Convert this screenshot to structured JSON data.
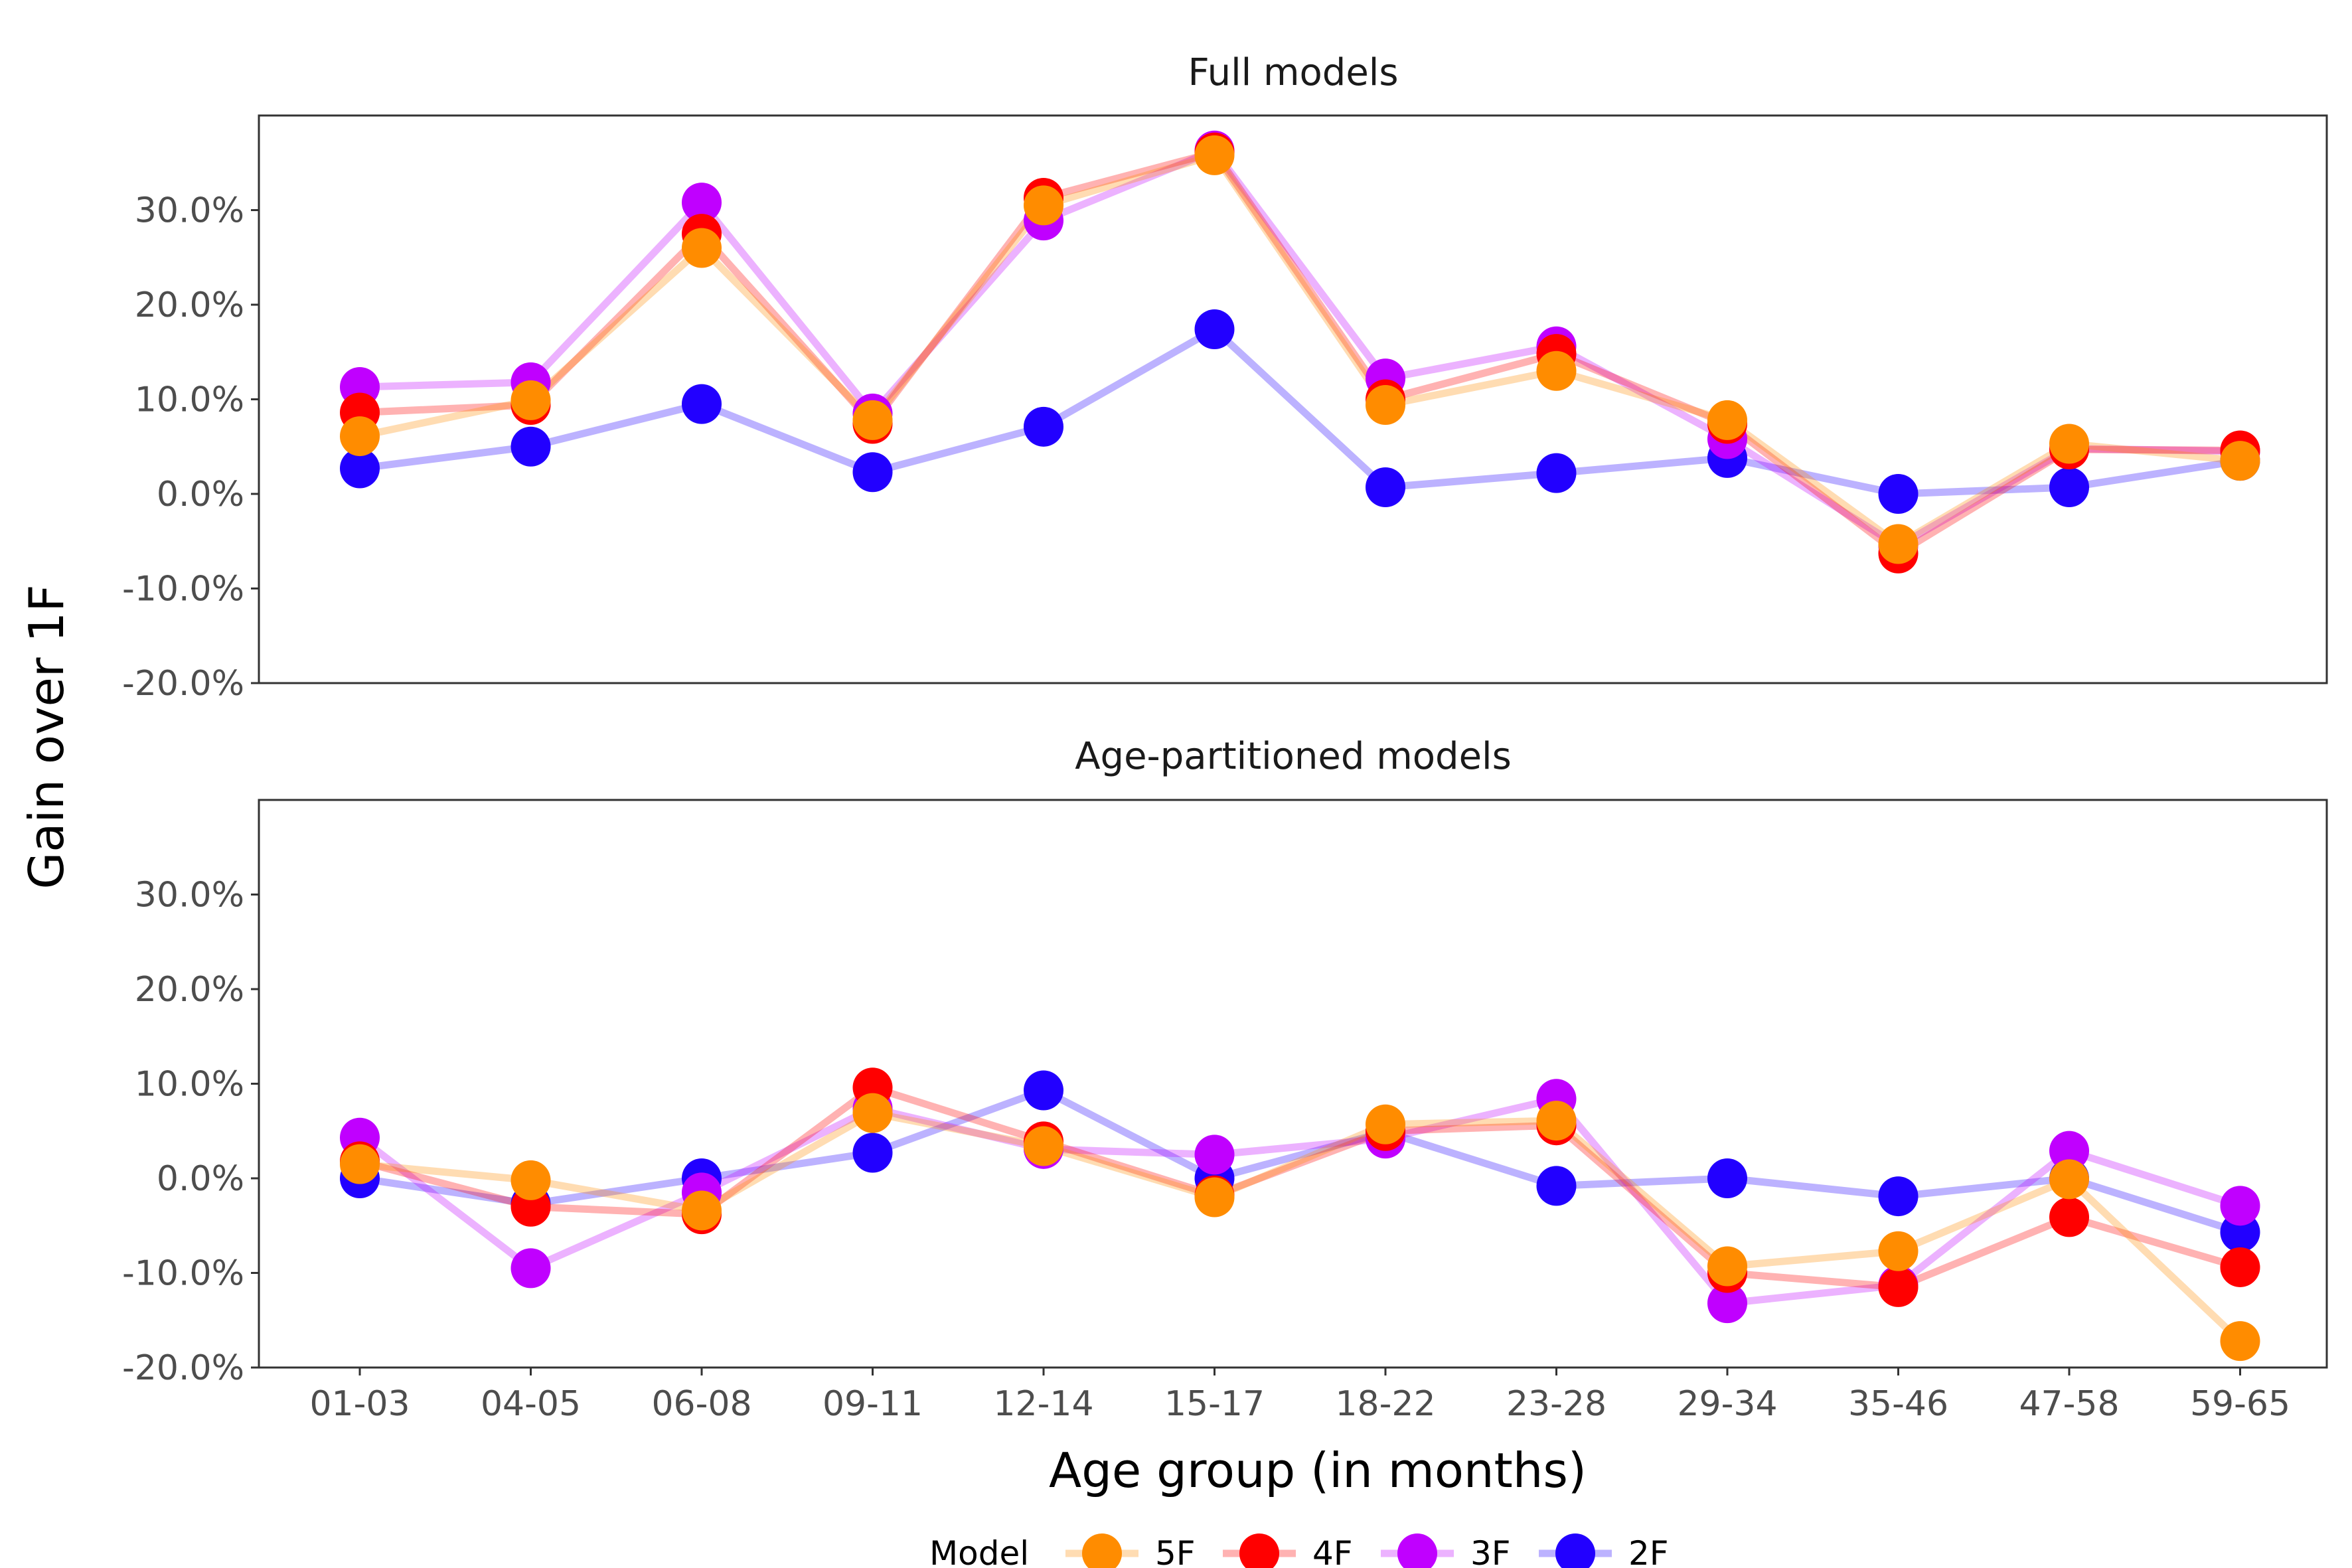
{
  "chart_data": {
    "type": "line",
    "xlabel": "Age group (in months)",
    "ylabel": "Gain over 1F",
    "categories": [
      "01-03",
      "04-05",
      "06-08",
      "09-11",
      "12-14",
      "15-17",
      "18-22",
      "23-28",
      "29-34",
      "35-46",
      "47-58",
      "59-65"
    ],
    "ylim": [
      -20,
      40
    ],
    "yticks": [
      -20,
      -10,
      0,
      10,
      20,
      30
    ],
    "ytick_labels": [
      "-20.0%",
      "-10.0%",
      "0.0%",
      "10.0%",
      "20.0%",
      "30.0%"
    ],
    "legend": {
      "title": "Model",
      "placement": "bottom",
      "entries": [
        "5F",
        "4F",
        "3F",
        "2F"
      ]
    },
    "series_colors": {
      "5F": "#ff8c00",
      "4F": "#ff0000",
      "3F": "#c000ff",
      "2F": "#2200ff"
    },
    "panels": [
      {
        "title": "Full models",
        "series": [
          {
            "name": "2F",
            "values": [
              2.7,
              5.0,
              9.5,
              2.3,
              7.1,
              17.4,
              0.7,
              2.2,
              3.8,
              0.0,
              0.7,
              3.5
            ]
          },
          {
            "name": "3F",
            "values": [
              11.3,
              11.8,
              30.8,
              8.5,
              28.9,
              36.3,
              12.2,
              15.6,
              5.8,
              -5.5,
              4.8,
              4.5
            ]
          },
          {
            "name": "4F",
            "values": [
              8.6,
              9.4,
              27.5,
              7.4,
              31.3,
              36.1,
              10.0,
              14.8,
              7.4,
              -6.3,
              4.7,
              4.6
            ]
          },
          {
            "name": "5F",
            "values": [
              6.1,
              9.9,
              26.0,
              7.8,
              30.5,
              35.8,
              9.4,
              13.0,
              7.8,
              -5.3,
              5.3,
              3.5
            ]
          }
        ]
      },
      {
        "title": "Age-partitioned models",
        "series": [
          {
            "name": "2F",
            "values": [
              0.0,
              -2.7,
              0.0,
              2.7,
              9.3,
              0.0,
              4.9,
              -0.8,
              0.0,
              -1.9,
              0.0,
              -5.7
            ]
          },
          {
            "name": "3F",
            "values": [
              4.3,
              -9.5,
              -1.5,
              7.4,
              3.1,
              2.5,
              4.2,
              8.4,
              -13.2,
              -11.3,
              2.9,
              -2.9
            ]
          },
          {
            "name": "4F",
            "values": [
              1.8,
              -3.0,
              -3.8,
              9.6,
              3.9,
              -1.8,
              5.0,
              5.6,
              -10.0,
              -11.5,
              -4.1,
              -9.4
            ]
          },
          {
            "name": "5F",
            "values": [
              1.5,
              -0.2,
              -3.4,
              6.9,
              3.4,
              -2.0,
              5.7,
              6.1,
              -9.3,
              -7.7,
              -0.1,
              -17.2
            ]
          }
        ]
      }
    ]
  }
}
